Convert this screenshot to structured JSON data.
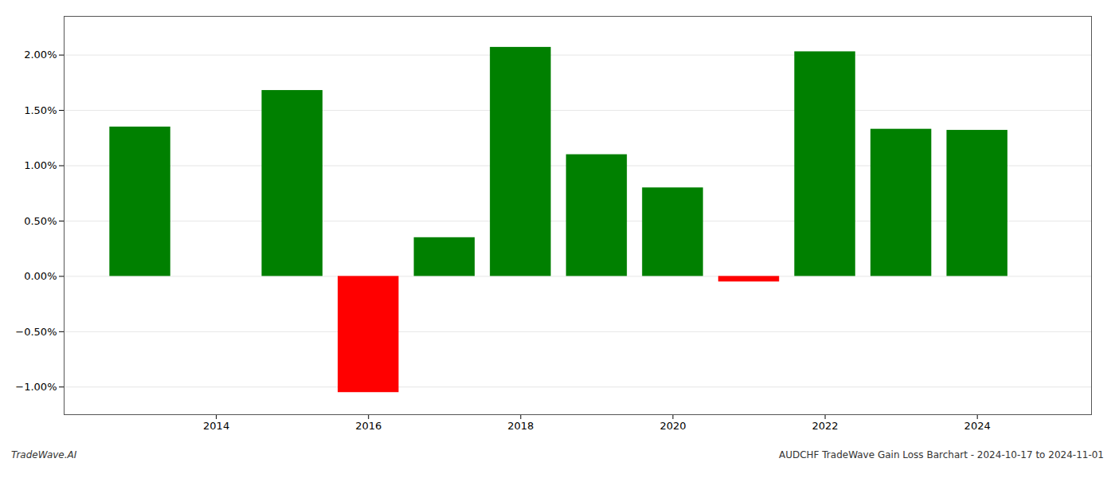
{
  "chart_data": {
    "type": "bar",
    "x": [
      2013,
      2015,
      2016,
      2017,
      2018,
      2019,
      2020,
      2021,
      2022,
      2023,
      2024
    ],
    "values": [
      1.35,
      1.68,
      -1.05,
      0.35,
      2.07,
      1.1,
      0.8,
      -0.05,
      2.03,
      1.33,
      1.32
    ],
    "colors": [
      "#008000",
      "#008000",
      "#ff0000",
      "#008000",
      "#008000",
      "#008000",
      "#008000",
      "#ff0000",
      "#008000",
      "#008000",
      "#008000"
    ],
    "xlim": [
      2012.0,
      2025.5
    ],
    "xticks": [
      2014,
      2016,
      2018,
      2020,
      2022,
      2024
    ],
    "ylim": [
      -1.25,
      2.35
    ],
    "yticks": [
      {
        "value": -1.0,
        "label": "−1.00%"
      },
      {
        "value": -0.5,
        "label": "−0.50%"
      },
      {
        "value": 0.0,
        "label": "0.00%"
      },
      {
        "value": 0.5,
        "label": "0.50%"
      },
      {
        "value": 1.0,
        "label": "1.00%"
      },
      {
        "value": 1.5,
        "label": "1.50%"
      },
      {
        "value": 2.0,
        "label": "2.00%"
      }
    ],
    "grid": true,
    "annotations": [
      "TradeWave.AI",
      "AUDCHF TradeWave Gain Loss Barchart - 2024-10-17 to 2024-11-01"
    ]
  }
}
